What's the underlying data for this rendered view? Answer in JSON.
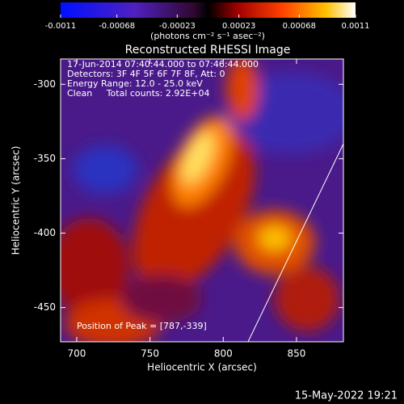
{
  "chart_data": {
    "type": "image",
    "title": "Reconstructed RHESSI Image",
    "colorbar": {
      "clim": [
        -0.0011,
        0.0011
      ],
      "ticks": [
        -0.0011,
        -0.00068,
        -0.00023,
        0.00023,
        0.00068,
        0.0011
      ],
      "label": "(photons cm⁻² s⁻¹ asec⁻²)"
    },
    "x_label": "Heliocentric X (arcsec)",
    "y_label": "Heliocentric Y (arcsec)",
    "xlim": [
      689,
      882
    ],
    "xticks": [
      700,
      750,
      800,
      850
    ],
    "ylim": [
      -473,
      -283
    ],
    "yticks": [
      -450,
      -400,
      -350,
      -300
    ],
    "annotations": [
      "17-Jun-2014 07:40:44.000 to 07:46:44.000",
      "Detectors: 3F 4F 5F 6F 7F 8F, Att: 0",
      "Energy Range: 12.0 - 25.0 keV",
      "Clean     Total counts: 2.92E+04"
    ],
    "peak_label": "Position of Peak = [787,-339]",
    "footer": "15-May-2022 19:21"
  }
}
